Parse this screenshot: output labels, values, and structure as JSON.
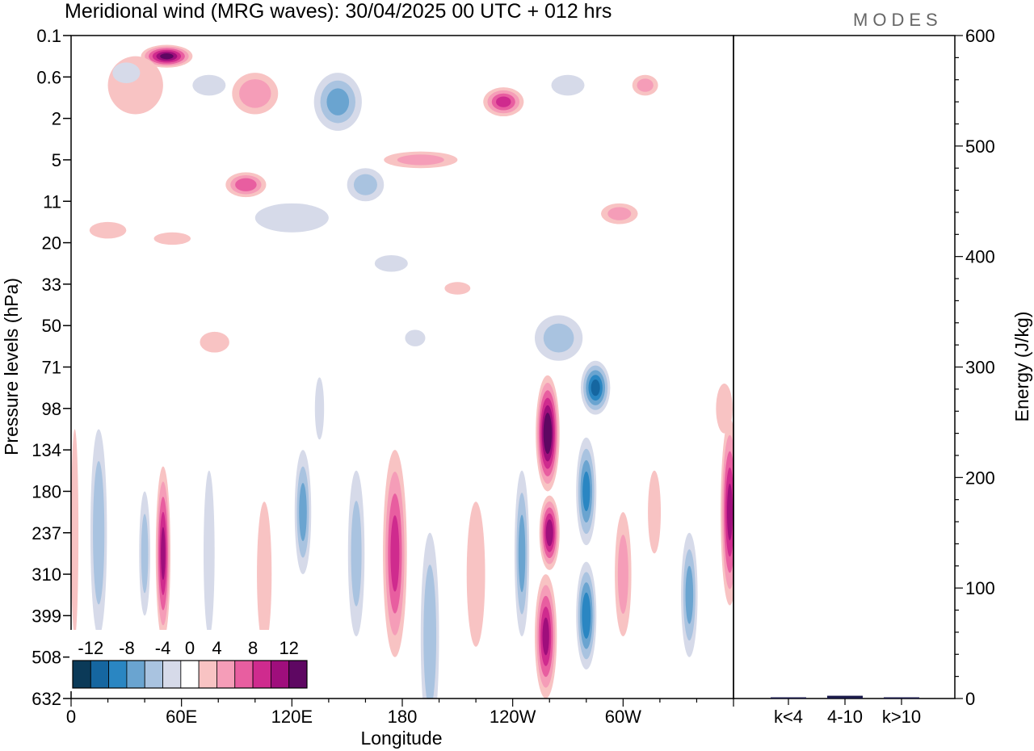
{
  "chart_data": [
    {
      "type": "heatmap",
      "title": "Meridional wind (MRG waves):  30/04/2025  00 UTC  + 012 hrs",
      "xlabel": "Longitude",
      "ylabel": "Pressure levels (hPa)",
      "x_ticks": [
        "0",
        "60E",
        "120E",
        "180",
        "120W",
        "60W"
      ],
      "y_ticks": [
        "0.1",
        "0.6",
        "2",
        "5",
        "11",
        "20",
        "33",
        "50",
        "71",
        "98",
        "134",
        "180",
        "237",
        "310",
        "399",
        "508",
        "632"
      ],
      "colorbar": {
        "labels": [
          "-12",
          "-8",
          "-4",
          "0",
          "4",
          "8",
          "12"
        ],
        "bounds": [
          -14,
          -12,
          -10,
          -8,
          -6,
          -4,
          -2,
          2,
          4,
          6,
          8,
          10,
          12,
          14
        ],
        "colors": [
          "#0b3a58",
          "#1566a0",
          "#2a86c2",
          "#6aa4d0",
          "#a9c3e0",
          "#d6dae9",
          "#ffffff",
          "#f8c3c3",
          "#f59db8",
          "#e85ea0",
          "#cf2b8e",
          "#9f0e7c",
          "#5e0762"
        ]
      },
      "features": [
        {
          "lon": 52,
          "lev": 0.5,
          "value": 12,
          "w": 28,
          "h": 0.55
        },
        {
          "lon": 35,
          "lev": 1.2,
          "value": 3,
          "w": 30,
          "h": 1.4
        },
        {
          "lon": 30,
          "lev": 0.9,
          "value": -3,
          "w": 15,
          "h": 0.5
        },
        {
          "lon": 75,
          "lev": 1.2,
          "value": -3,
          "w": 18,
          "h": 0.5
        },
        {
          "lon": 100,
          "lev": 1.4,
          "value": 5,
          "w": 25,
          "h": 1.0
        },
        {
          "lon": 95,
          "lev": 3.6,
          "value": 7,
          "w": 22,
          "h": 0.6
        },
        {
          "lon": 145,
          "lev": 1.6,
          "value": -6,
          "w": 26,
          "h": 1.4
        },
        {
          "lon": 160,
          "lev": 3.6,
          "value": -4,
          "w": 20,
          "h": 0.8
        },
        {
          "lon": 190,
          "lev": 3.0,
          "value": 4,
          "w": 40,
          "h": 0.4
        },
        {
          "lon": 235,
          "lev": 1.6,
          "value": 8,
          "w": 22,
          "h": 0.7
        },
        {
          "lon": 270,
          "lev": 1.2,
          "value": -3,
          "w": 18,
          "h": 0.5
        },
        {
          "lon": 312,
          "lev": 1.2,
          "value": 4,
          "w": 14,
          "h": 0.5
        },
        {
          "lon": 20,
          "lev": 4.7,
          "value": 3,
          "w": 20,
          "h": 0.4
        },
        {
          "lon": 55,
          "lev": 4.9,
          "value": 3,
          "w": 20,
          "h": 0.3
        },
        {
          "lon": 120,
          "lev": 4.4,
          "value": -3,
          "w": 40,
          "h": 0.7
        },
        {
          "lon": 174,
          "lev": 5.5,
          "value": -3,
          "w": 18,
          "h": 0.4
        },
        {
          "lon": 298,
          "lev": 4.3,
          "value": 4,
          "w": 20,
          "h": 0.5
        },
        {
          "lon": 210,
          "lev": 6.1,
          "value": 3,
          "w": 14,
          "h": 0.3
        },
        {
          "lon": 78,
          "lev": 7.4,
          "value": 3,
          "w": 16,
          "h": 0.5
        },
        {
          "lon": 187,
          "lev": 7.3,
          "value": -3,
          "w": 11,
          "h": 0.4
        },
        {
          "lon": 265,
          "lev": 7.3,
          "value": -4,
          "w": 26,
          "h": 1.1
        },
        {
          "lon": 285,
          "lev": 8.5,
          "value": -10,
          "w": 16,
          "h": 1.3
        },
        {
          "lon": 259,
          "lev": 9.6,
          "value": 14,
          "w": 13,
          "h": 2.8
        },
        {
          "lon": 260,
          "lev": 12.0,
          "value": 11,
          "w": 11,
          "h": 1.8
        },
        {
          "lon": 258,
          "lev": 14.5,
          "value": 10,
          "w": 12,
          "h": 3.0
        },
        {
          "lon": 280,
          "lev": 11.0,
          "value": -8,
          "w": 11,
          "h": 2.6
        },
        {
          "lon": 280,
          "lev": 14.0,
          "value": -9,
          "w": 11,
          "h": 2.6
        },
        {
          "lon": 245,
          "lev": 12.5,
          "value": -6,
          "w": 8,
          "h": 4.0
        },
        {
          "lon": 220,
          "lev": 13.0,
          "value": 3,
          "w": 10,
          "h": 3.5
        },
        {
          "lon": 300,
          "lev": 13.0,
          "value": 4,
          "w": 9,
          "h": 3.0
        },
        {
          "lon": 336,
          "lev": 13.5,
          "value": -6,
          "w": 9,
          "h": 3.0
        },
        {
          "lon": 317,
          "lev": 11.5,
          "value": 3,
          "w": 7,
          "h": 2.0
        },
        {
          "lon": 358,
          "lev": 11.5,
          "value": 10,
          "w": 10,
          "h": 4.5
        },
        {
          "lon": 355,
          "lev": 9.0,
          "value": 3,
          "w": 9,
          "h": 1.2
        },
        {
          "lon": 2,
          "lev": 12.0,
          "value": 3,
          "w": 4,
          "h": 5.0
        },
        {
          "lon": 15,
          "lev": 12.0,
          "value": -5,
          "w": 9,
          "h": 5.0
        },
        {
          "lon": 50,
          "lev": 12.5,
          "value": 10,
          "w": 8,
          "h": 4.2
        },
        {
          "lon": 40,
          "lev": 12.5,
          "value": -4,
          "w": 6,
          "h": 3.0
        },
        {
          "lon": 75,
          "lev": 12.5,
          "value": -3,
          "w": 6,
          "h": 4.0
        },
        {
          "lon": 105,
          "lev": 13.0,
          "value": 3,
          "w": 8,
          "h": 3.5
        },
        {
          "lon": 126,
          "lev": 11.5,
          "value": -6,
          "w": 9,
          "h": 3.0
        },
        {
          "lon": 155,
          "lev": 12.5,
          "value": -4,
          "w": 9,
          "h": 4.0
        },
        {
          "lon": 135,
          "lev": 9.0,
          "value": -3,
          "w": 5,
          "h": 1.5
        },
        {
          "lon": 176,
          "lev": 12.5,
          "value": 8,
          "w": 13,
          "h": 5.0
        },
        {
          "lon": 195,
          "lev": 14.5,
          "value": -5,
          "w": 10,
          "h": 5.0
        }
      ],
      "energy_axis": {
        "ylabel": "Energy (J/kg)",
        "y_ticks": [
          "0",
          "100",
          "200",
          "300",
          "400",
          "500",
          "600"
        ],
        "ylim": [
          0,
          600
        ],
        "categories": [
          "k<4",
          "4-10",
          "k>10"
        ],
        "values": [
          0.4,
          2.5,
          0.4
        ]
      }
    }
  ],
  "logo": "MODES",
  "colors": {
    "bar": "#1a1a4a",
    "axis": "#000000"
  }
}
